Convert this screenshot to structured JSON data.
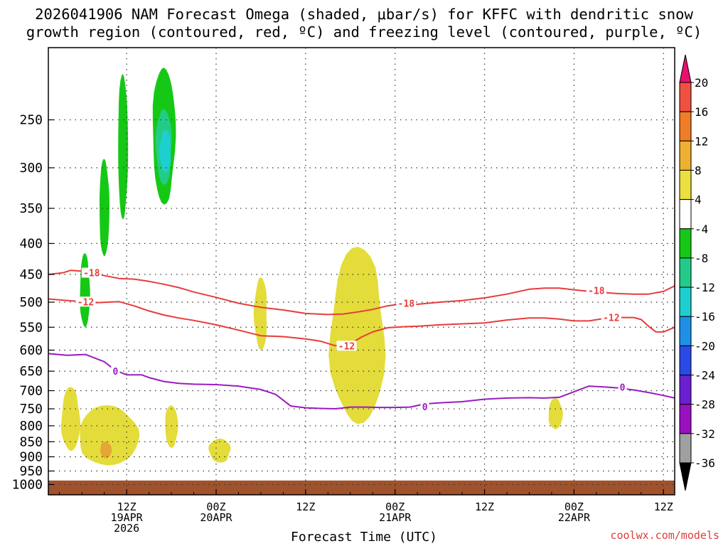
{
  "title": {
    "line1": "2026041906 NAM Forecast Omega (shaded, μbar/s) for KFFC with dendritic snow",
    "line2": "growth region (contoured, red, ºC) and freezing level (contoured, purple, ºC)"
  },
  "credit": "coolwx.com/models",
  "chart_data": {
    "type": "contour",
    "title": "2026041906 NAM Forecast Omega (shaded, μbar/s) for KFFC with dendritic snow growth region (contoured, red, ºC) and freezing level (contoured, purple, ºC)",
    "xlabel": "Forecast Time (UTC)",
    "ylabel": "",
    "x_range_hours": [
      -4.5,
      79.5
    ],
    "y_range_hPa": [
      1040,
      190
    ],
    "y_scale": "log-pressure",
    "grid": true,
    "y_ticks": [
      250,
      300,
      350,
      400,
      450,
      500,
      550,
      600,
      650,
      700,
      750,
      800,
      850,
      900,
      950,
      1000
    ],
    "x_ticks": [
      {
        "hour": 6,
        "lines": [
          "12Z",
          "19APR",
          "2026"
        ]
      },
      {
        "hour": 18,
        "lines": [
          "00Z",
          "20APR"
        ]
      },
      {
        "hour": 30,
        "lines": [
          "12Z"
        ]
      },
      {
        "hour": 42,
        "lines": [
          "00Z",
          "21APR"
        ]
      },
      {
        "hour": 54,
        "lines": [
          "12Z"
        ]
      },
      {
        "hour": 66,
        "lines": [
          "00Z",
          "22APR"
        ]
      },
      {
        "hour": 78,
        "lines": [
          "12Z"
        ]
      }
    ],
    "colorbar": {
      "labels": [
        "20",
        "16",
        "12",
        "8",
        "4",
        "-4",
        "-8",
        "-12",
        "-16",
        "-20",
        "-24",
        "-28",
        "-32",
        "-36"
      ],
      "colors": [
        "#e8106e",
        "#f05040",
        "#f07c28",
        "#eeb030",
        "#ece040",
        "#ffffff",
        "#16c816",
        "#22cc88",
        "#1ecfd0",
        "#1e90e8",
        "#2a4ae6",
        "#6a20d0",
        "#9a10c0",
        "#a0a0a0",
        "#000000"
      ]
    },
    "contours": [
      {
        "label": "-18",
        "color": "#e83c3c",
        "hours": [
          -4.5,
          -2.5,
          -1.5,
          0.5,
          3,
          5,
          7,
          9,
          11,
          13,
          15,
          18,
          21,
          24,
          27,
          30,
          33,
          35,
          37,
          39,
          41,
          43,
          45,
          48,
          51,
          54,
          57,
          60,
          62,
          64,
          66,
          68,
          70,
          72,
          74,
          76,
          78,
          79.5
        ],
        "pressure": [
          450,
          447,
          443,
          445,
          452,
          457,
          458,
          462,
          467,
          473,
          481,
          491,
          502,
          510,
          515,
          522,
          524,
          523,
          519,
          514,
          507,
          503,
          504,
          500,
          497,
          492,
          485,
          476,
          474,
          474,
          477,
          480,
          482,
          484,
          485,
          485,
          480,
          470
        ]
      },
      {
        "label": "-12",
        "color": "#e83c3c",
        "hours": [
          -4.5,
          -1,
          2,
          5,
          7,
          9,
          11,
          13,
          15,
          18,
          21,
          24,
          27,
          30,
          32,
          34,
          36,
          37.5,
          39,
          41,
          43,
          45,
          48,
          51,
          54,
          57,
          60,
          62,
          64,
          66,
          68,
          70,
          72,
          74,
          75,
          76,
          77,
          78,
          79.5
        ],
        "pressure": [
          494,
          498,
          501,
          499,
          507,
          517,
          525,
          531,
          536,
          545,
          556,
          568,
          570,
          575,
          580,
          590,
          586,
          571,
          560,
          551,
          549,
          548,
          545,
          543,
          541,
          535,
          531,
          531,
          533,
          537,
          537,
          532,
          530,
          530,
          534,
          548,
          560,
          560,
          550
        ]
      },
      {
        "label": "0",
        "color": "#9a1cc0",
        "hours": [
          -4.5,
          -2,
          0.5,
          3,
          4.5,
          6,
          8,
          9,
          11,
          13,
          15,
          18,
          21,
          24,
          26,
          28,
          30,
          32,
          34,
          36,
          38,
          40,
          42,
          44,
          46,
          48,
          51,
          54,
          57,
          60,
          62,
          64,
          66,
          68,
          70,
          72,
          74,
          76,
          78,
          79.5
        ],
        "pressure": [
          608,
          612,
          610,
          627,
          648,
          659,
          659,
          666,
          676,
          681,
          683,
          684,
          688,
          697,
          710,
          742,
          747,
          749,
          750,
          745,
          745,
          746,
          746,
          745,
          736,
          733,
          730,
          723,
          720,
          719,
          720,
          718,
          703,
          688,
          690,
          693,
          698,
          705,
          713,
          720
        ]
      }
    ],
    "contour_labels": [
      {
        "text": "-18",
        "hour": 1.3,
        "p": 447
      },
      {
        "text": "-12",
        "hour": 0.5,
        "p": 499
      },
      {
        "text": "-18",
        "hour": 43.5,
        "p": 502
      },
      {
        "text": "-12",
        "hour": 35.5,
        "p": 590
      },
      {
        "text": "-18",
        "hour": 69,
        "p": 478
      },
      {
        "text": "-12",
        "hour": 71,
        "p": 530
      },
      {
        "text": "0",
        "hour": 4.5,
        "p": 650
      },
      {
        "text": "0",
        "hour": 46,
        "p": 744
      },
      {
        "text": "0",
        "hour": 72.5,
        "p": 691
      }
    ],
    "shaded_regions": [
      {
        "value_bin": "-8 to -4",
        "color": "#16c816",
        "center_hour": 0.4,
        "p_range": [
          415,
          550
        ]
      },
      {
        "value_bin": "-8 to -4",
        "color": "#16c816",
        "center_hour": 3.0,
        "p_range": [
          290,
          420
        ]
      },
      {
        "value_bin": "-8 to -4",
        "color": "#16c816",
        "center_hour": 5.5,
        "p_range": [
          210,
          365
        ]
      },
      {
        "value_bin": "-8 to -4",
        "color": "#16c816",
        "center_hour": 11.0,
        "p_range": [
          205,
          345
        ]
      },
      {
        "value_bin": "-12 to -8",
        "color": "#22cc88",
        "center_hour": 11.0,
        "p_range": [
          240,
          320
        ]
      },
      {
        "value_bin": "-16 to -12",
        "color": "#1ecfd0",
        "center_hour": 11.2,
        "p_range": [
          260,
          305
        ]
      },
      {
        "value_bin": "4 to 8",
        "color": "#e4dc3a",
        "center_hour": -1.5,
        "p_range": [
          690,
          880
        ]
      },
      {
        "value_bin": "4 to 8",
        "color": "#e4dc3a",
        "center_hour": 3.5,
        "p_range": [
          740,
          930
        ]
      },
      {
        "value_bin": "8 to 12",
        "color": "#e7a633",
        "center_hour": 3.2,
        "p_range": [
          850,
          905
        ]
      },
      {
        "value_bin": "4 to 8",
        "color": "#e4dc3a",
        "center_hour": 12.0,
        "p_range": [
          740,
          870
        ]
      },
      {
        "value_bin": "4 to 8",
        "color": "#e4dc3a",
        "center_hour": 18.5,
        "p_range": [
          840,
          920
        ]
      },
      {
        "value_bin": "4 to 8",
        "color": "#e4dc3a",
        "center_hour": 24.0,
        "p_range": [
          455,
          600
        ]
      },
      {
        "value_bin": "4 to 8",
        "color": "#e4dc3a",
        "center_hour": 37.0,
        "p_range": [
          405,
          795
        ]
      },
      {
        "value_bin": "4 to 8",
        "color": "#e4dc3a",
        "center_hour": 63.5,
        "p_range": [
          720,
          810
        ]
      }
    ],
    "ground": {
      "color": "#a0522d",
      "p_top": 985
    }
  }
}
